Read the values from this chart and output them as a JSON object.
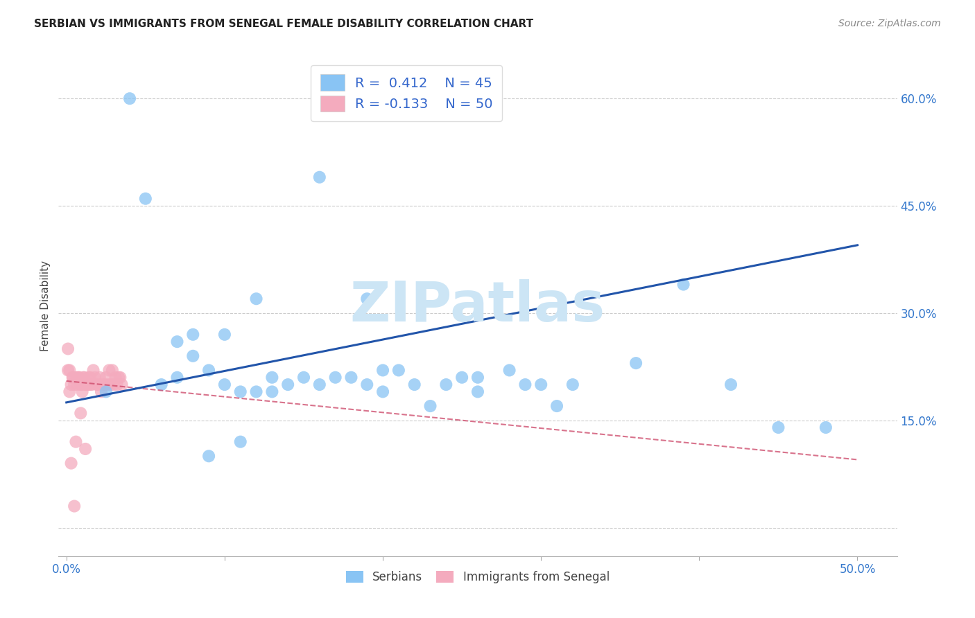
{
  "title": "SERBIAN VS IMMIGRANTS FROM SENEGAL FEMALE DISABILITY CORRELATION CHART",
  "source": "Source: ZipAtlas.com",
  "ylabel": "Female Disability",
  "y_ticks": [
    0.0,
    0.15,
    0.3,
    0.45,
    0.6
  ],
  "y_tick_labels": [
    "",
    "15.0%",
    "30.0%",
    "45.0%",
    "60.0%"
  ],
  "x_ticks": [
    0.0,
    0.1,
    0.2,
    0.3,
    0.4,
    0.5
  ],
  "x_tick_labels": [
    "0.0%",
    "",
    "",
    "",
    "",
    "50.0%"
  ],
  "xlim": [
    -0.005,
    0.525
  ],
  "ylim": [
    -0.04,
    0.66
  ],
  "color_serbian": "#89C4F4",
  "color_senegal": "#F4ABBE",
  "color_trendline_serbian": "#2255AA",
  "color_trendline_senegal": "#CC4466",
  "watermark": "ZIPatlas",
  "watermark_color": "#cce5f5",
  "serbian_x": [
    0.025,
    0.04,
    0.06,
    0.07,
    0.08,
    0.08,
    0.09,
    0.1,
    0.1,
    0.11,
    0.12,
    0.12,
    0.13,
    0.14,
    0.15,
    0.16,
    0.17,
    0.19,
    0.19,
    0.2,
    0.21,
    0.22,
    0.23,
    0.24,
    0.26,
    0.26,
    0.29,
    0.3,
    0.31,
    0.32,
    0.36,
    0.39,
    0.42,
    0.45,
    0.48,
    0.05,
    0.07,
    0.09,
    0.11,
    0.13,
    0.16,
    0.18,
    0.2,
    0.25,
    0.28
  ],
  "serbian_y": [
    0.19,
    0.6,
    0.2,
    0.21,
    0.24,
    0.27,
    0.22,
    0.2,
    0.27,
    0.19,
    0.32,
    0.19,
    0.21,
    0.2,
    0.21,
    0.2,
    0.21,
    0.32,
    0.2,
    0.19,
    0.22,
    0.2,
    0.17,
    0.2,
    0.21,
    0.19,
    0.2,
    0.2,
    0.17,
    0.2,
    0.23,
    0.34,
    0.2,
    0.14,
    0.14,
    0.46,
    0.26,
    0.1,
    0.12,
    0.19,
    0.49,
    0.21,
    0.22,
    0.21,
    0.22
  ],
  "senegal_x": [
    0.001,
    0.002,
    0.003,
    0.004,
    0.005,
    0.006,
    0.007,
    0.008,
    0.009,
    0.01,
    0.011,
    0.012,
    0.013,
    0.014,
    0.015,
    0.016,
    0.017,
    0.018,
    0.019,
    0.02,
    0.021,
    0.022,
    0.023,
    0.024,
    0.025,
    0.026,
    0.027,
    0.028,
    0.029,
    0.03,
    0.031,
    0.032,
    0.033,
    0.034,
    0.035,
    0.001,
    0.002,
    0.003,
    0.004,
    0.005,
    0.006,
    0.007,
    0.008,
    0.009,
    0.01,
    0.011,
    0.012,
    0.013,
    0.014,
    0.015
  ],
  "senegal_y": [
    0.22,
    0.22,
    0.2,
    0.21,
    0.2,
    0.12,
    0.21,
    0.21,
    0.2,
    0.2,
    0.21,
    0.2,
    0.2,
    0.2,
    0.21,
    0.2,
    0.22,
    0.21,
    0.2,
    0.2,
    0.21,
    0.19,
    0.2,
    0.2,
    0.21,
    0.2,
    0.22,
    0.2,
    0.22,
    0.2,
    0.21,
    0.2,
    0.21,
    0.21,
    0.2,
    0.25,
    0.19,
    0.09,
    0.21,
    0.03,
    0.21,
    0.2,
    0.21,
    0.16,
    0.19,
    0.21,
    0.11,
    0.2,
    0.21,
    0.2
  ],
  "trendline_serbian_x0": 0.0,
  "trendline_serbian_y0": 0.175,
  "trendline_serbian_x1": 0.5,
  "trendline_serbian_y1": 0.395,
  "trendline_senegal_x0": 0.0,
  "trendline_senegal_y0": 0.205,
  "trendline_senegal_x1": 0.5,
  "trendline_senegal_y1": 0.095
}
